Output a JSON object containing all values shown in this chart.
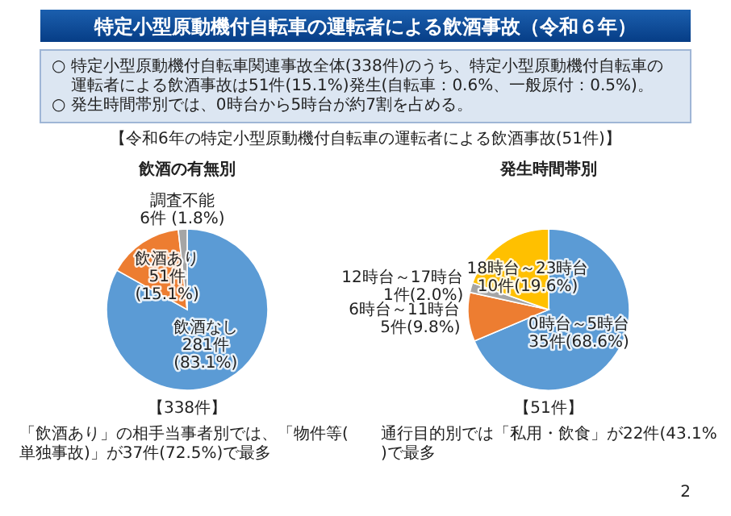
{
  "chart_data": [
    {
      "type": "other",
      "title": "特定小型原動機付自転車の運転者による飲酒事故（令和６年）",
      "subtitle": "【令和6年の特定小型原動機付自転車の運転者による飲酒事故(51件)】",
      "annotations": [
        "○ 特定小型原動機付自転車関連事故全体(338件)のうち、特定小型原動機付自転車の運転者による飲酒事故は51件(15.1%)発生(自転車：0.6%、一般原付：0.5%)。",
        "○ 発生時間帯別では、0時台から5時台が約7割を占める。",
        "2"
      ]
    },
    {
      "type": "pie",
      "title": "飲酒の有無別",
      "categories": [
        "飲酒なし",
        "飲酒あり",
        "調査不能"
      ],
      "values": [
        281,
        51,
        6
      ],
      "colors": [
        "#5b9bd5",
        "#ed7d31",
        "#a5a5a5"
      ],
      "value_labels": [
        "281件\n(83.1%)",
        "51件\n(15.1%)",
        "6件 (1.8%)"
      ],
      "annotations": [
        "【338件】",
        "「飲酒あり」の相手当事者別では、「物件等(単独事故)」が37件(72.5%)で最多"
      ]
    },
    {
      "type": "pie",
      "title": "発生時間帯別",
      "categories": [
        "0時台～5時台",
        "6時台～11時台",
        "12時台～17時台",
        "18時台～23時台"
      ],
      "values": [
        35,
        5,
        1,
        10
      ],
      "colors": [
        "#5b9bd5",
        "#ed7d31",
        "#a5a5a5",
        "#ffc000"
      ],
      "value_labels": [
        "35件(68.6%)",
        "5件(9.8%)",
        "1件(2.0%)",
        "10件(19.6%)"
      ],
      "annotations": [
        "【51件】",
        "通行目的別では「私用・飲食」が22件(43.1%)で最多"
      ]
    }
  ]
}
